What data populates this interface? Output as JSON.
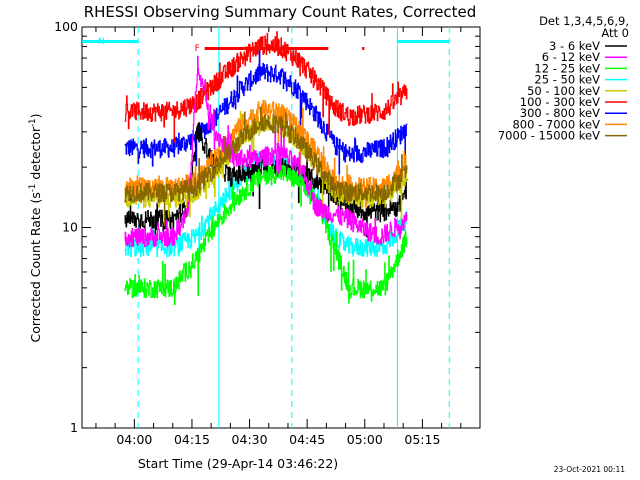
{
  "chart_data": {
    "type": "line",
    "title": "RHESSI Observing Summary Count Rates, Corrected",
    "xlabel": "Start Time (29-Apr-14 03:46:22)",
    "ylabel": "Corrected Count Rate (s⁻¹ detector⁻¹)",
    "ylabel_parts": [
      "Corrected Count Rate (s",
      "-1",
      " detector",
      "-1",
      ")"
    ],
    "y_scale": "log",
    "ylim": [
      1,
      100
    ],
    "xlim_minutes": [
      226.37,
      330.0
    ],
    "y_ticks": [
      {
        "value": 1,
        "label": "1"
      },
      {
        "value": 10,
        "label": "10"
      },
      {
        "value": 100,
        "label": "100"
      }
    ],
    "x_ticks": [
      {
        "value": 240,
        "label": "04:00"
      },
      {
        "value": 255,
        "label": "04:15"
      },
      {
        "value": 270,
        "label": "04:30"
      },
      {
        "value": 285,
        "label": "04:45"
      },
      {
        "value": 300,
        "label": "05:00"
      },
      {
        "value": 315,
        "label": "05:15"
      }
    ],
    "legend_header": [
      "Det 1,3,4,5,6,9,",
      "Att 0"
    ],
    "legend_placement": "right",
    "flag_labels": {
      "night": "N",
      "flare": "F"
    },
    "night_segments_minutes": [
      [
        226.4,
        241.0
      ],
      [
        308.5,
        322.0
      ]
    ],
    "flare_segments_minutes": [
      [
        258.3,
        290.5
      ],
      [
        299.3,
        299.9
      ]
    ],
    "saa_lines_minutes": [
      241.0,
      262.0,
      281.0,
      308.5,
      322.0
    ],
    "solid_lines_minutes": [
      262.0,
      308.5
    ],
    "series": [
      {
        "name": "3 - 6 keV",
        "color": "#000000",
        "values_at": [
          [
            237.5,
            11
          ],
          [
            250,
            11
          ],
          [
            254,
            13
          ],
          [
            256.5,
            31
          ],
          [
            260,
            22
          ],
          [
            265,
            18
          ],
          [
            270,
            19
          ],
          [
            275,
            20
          ],
          [
            280,
            20
          ],
          [
            285,
            18
          ],
          [
            290,
            16
          ],
          [
            295,
            13
          ],
          [
            300,
            12
          ],
          [
            305,
            12
          ],
          [
            309,
            13
          ],
          [
            311,
            16
          ]
        ]
      },
      {
        "name": "6 - 12 keV",
        "color": "#ff00ff",
        "values_at": [
          [
            237.5,
            9
          ],
          [
            250,
            9
          ],
          [
            254,
            12
          ],
          [
            256.5,
            68
          ],
          [
            258,
            48
          ],
          [
            261,
            30
          ],
          [
            266,
            22
          ],
          [
            272,
            22
          ],
          [
            278,
            24
          ],
          [
            284,
            19
          ],
          [
            287,
            13
          ],
          [
            290,
            12
          ],
          [
            296,
            11
          ],
          [
            299,
            10
          ],
          [
            304,
            9
          ],
          [
            311,
            11
          ]
        ]
      },
      {
        "name": "12 - 25 keV",
        "color": "#00ff00",
        "values_at": [
          [
            237.5,
            5
          ],
          [
            250,
            5
          ],
          [
            256,
            7
          ],
          [
            262,
            11
          ],
          [
            268,
            15
          ],
          [
            273,
            18
          ],
          [
            278,
            19
          ],
          [
            283,
            17
          ],
          [
            288,
            13
          ],
          [
            292,
            8
          ],
          [
            296,
            5
          ],
          [
            305,
            5
          ],
          [
            311,
            9
          ]
        ]
      },
      {
        "name": "25 - 50 keV",
        "color": "#00ffff",
        "values_at": [
          [
            237.5,
            8
          ],
          [
            250,
            8
          ],
          [
            256,
            9
          ],
          [
            262,
            13
          ],
          [
            268,
            18
          ],
          [
            273,
            22
          ],
          [
            278,
            21
          ],
          [
            283,
            18
          ],
          [
            288,
            13
          ],
          [
            292,
            9
          ],
          [
            296,
            8
          ],
          [
            305,
            8
          ],
          [
            311,
            11
          ]
        ]
      },
      {
        "name": "50 - 100 keV",
        "color": "#cccc00",
        "values_at": [
          [
            237.5,
            14
          ],
          [
            250,
            14
          ],
          [
            256,
            15
          ],
          [
            262,
            20
          ],
          [
            268,
            28
          ],
          [
            273,
            33
          ],
          [
            278,
            32
          ],
          [
            283,
            27
          ],
          [
            288,
            20
          ],
          [
            292,
            15
          ],
          [
            296,
            14
          ],
          [
            305,
            14
          ],
          [
            311,
            18
          ]
        ]
      },
      {
        "name": "100 - 300 keV",
        "color": "#ff0000",
        "values_at": [
          [
            237.5,
            38
          ],
          [
            250,
            38
          ],
          [
            256,
            42
          ],
          [
            262,
            55
          ],
          [
            268,
            70
          ],
          [
            273,
            82
          ],
          [
            278,
            80
          ],
          [
            283,
            68
          ],
          [
            288,
            52
          ],
          [
            292,
            40
          ],
          [
            296,
            36
          ],
          [
            305,
            38
          ],
          [
            311,
            48
          ]
        ]
      },
      {
        "name": "300 - 800 keV",
        "color": "#0000ff",
        "values_at": [
          [
            237.5,
            25
          ],
          [
            250,
            25
          ],
          [
            256,
            28
          ],
          [
            262,
            37
          ],
          [
            268,
            50
          ],
          [
            273,
            60
          ],
          [
            278,
            58
          ],
          [
            283,
            48
          ],
          [
            288,
            35
          ],
          [
            292,
            26
          ],
          [
            296,
            23
          ],
          [
            305,
            25
          ],
          [
            311,
            31
          ]
        ]
      },
      {
        "name": "800 - 7000 keV",
        "color": "#ff8800",
        "values_at": [
          [
            237.5,
            16
          ],
          [
            250,
            16
          ],
          [
            256,
            17
          ],
          [
            262,
            24
          ],
          [
            268,
            33
          ],
          [
            273,
            39
          ],
          [
            278,
            38
          ],
          [
            283,
            31
          ],
          [
            288,
            23
          ],
          [
            292,
            17
          ],
          [
            296,
            16
          ],
          [
            305,
            16
          ],
          [
            311,
            21
          ]
        ]
      },
      {
        "name": "7000 - 15000 keV",
        "color": "#886600",
        "values_at": [
          [
            237.5,
            15
          ],
          [
            250,
            15
          ],
          [
            256,
            16
          ],
          [
            262,
            21
          ],
          [
            268,
            28
          ],
          [
            273,
            34
          ],
          [
            278,
            33
          ],
          [
            283,
            27
          ],
          [
            288,
            20
          ],
          [
            292,
            16
          ],
          [
            296,
            15
          ],
          [
            305,
            15
          ],
          [
            311,
            19
          ]
        ]
      }
    ]
  },
  "footer": {
    "timestamp": "23-Oct-2021 00:11"
  },
  "colors": {
    "axis": "#000000",
    "night_bar": "#00ffff",
    "flare_bar": "#ff0000",
    "background": "#ffffff"
  }
}
